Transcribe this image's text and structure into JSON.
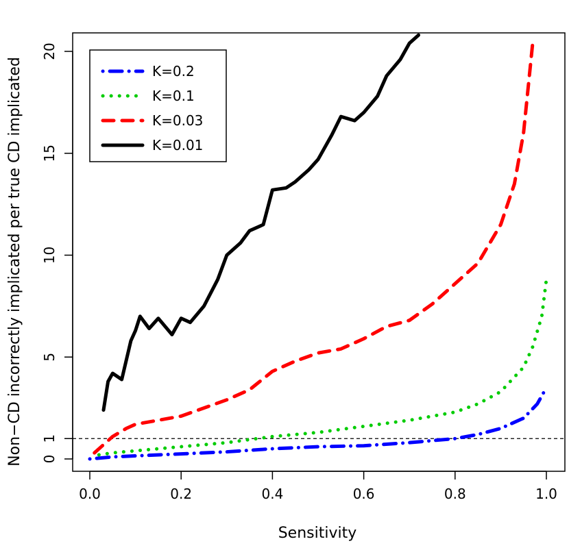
{
  "chart_data": {
    "type": "line",
    "title": "",
    "xlabel": "Sensitivity",
    "ylabel": "Non−CD incorrectly implicated per true CD implicated",
    "xlim": [
      0.0,
      1.0
    ],
    "ylim": [
      0,
      20
    ],
    "x_ticks": [
      "0.0",
      "0.2",
      "0.4",
      "0.6",
      "0.8",
      "1.0"
    ],
    "y_ticks": [
      "0",
      "1",
      "5",
      "10",
      "15",
      "20"
    ],
    "y_tick_values": [
      0,
      1,
      5,
      10,
      15,
      20
    ],
    "grid": false,
    "legend_position": "top-left",
    "reference_line": {
      "y": 1,
      "style": "dashed",
      "color": "#000000"
    },
    "series": [
      {
        "name": "K=0.2",
        "color": "#0000ff",
        "style": "dashdot",
        "x": [
          0.0,
          0.05,
          0.1,
          0.2,
          0.3,
          0.4,
          0.5,
          0.6,
          0.7,
          0.8,
          0.85,
          0.9,
          0.95,
          0.98,
          1.0
        ],
        "y": [
          0.0,
          0.1,
          0.15,
          0.25,
          0.35,
          0.5,
          0.6,
          0.65,
          0.8,
          1.0,
          1.2,
          1.5,
          2.0,
          2.7,
          3.5
        ]
      },
      {
        "name": "K=0.1",
        "color": "#00cc00",
        "style": "dotted",
        "x": [
          0.02,
          0.05,
          0.1,
          0.2,
          0.3,
          0.4,
          0.5,
          0.6,
          0.7,
          0.8,
          0.85,
          0.9,
          0.95,
          0.97,
          0.99,
          1.0
        ],
        "y": [
          0.2,
          0.3,
          0.4,
          0.6,
          0.8,
          1.1,
          1.3,
          1.6,
          1.9,
          2.3,
          2.7,
          3.3,
          4.5,
          5.5,
          7.0,
          8.8
        ]
      },
      {
        "name": "K=0.03",
        "color": "#ff0000",
        "style": "dashed",
        "x": [
          0.01,
          0.03,
          0.05,
          0.08,
          0.1,
          0.15,
          0.2,
          0.25,
          0.3,
          0.35,
          0.4,
          0.45,
          0.5,
          0.55,
          0.6,
          0.65,
          0.7,
          0.75,
          0.8,
          0.85,
          0.9,
          0.93,
          0.95,
          0.97
        ],
        "y": [
          0.3,
          0.7,
          1.1,
          1.5,
          1.7,
          1.9,
          2.1,
          2.5,
          2.9,
          3.4,
          4.3,
          4.8,
          5.2,
          5.4,
          5.9,
          6.5,
          6.8,
          7.6,
          8.6,
          9.6,
          11.5,
          13.5,
          16.0,
          20.4
        ]
      },
      {
        "name": "K=0.01",
        "color": "#000000",
        "style": "solid",
        "x": [
          0.03,
          0.04,
          0.05,
          0.07,
          0.09,
          0.1,
          0.11,
          0.13,
          0.15,
          0.18,
          0.2,
          0.22,
          0.25,
          0.28,
          0.3,
          0.33,
          0.35,
          0.38,
          0.4,
          0.43,
          0.45,
          0.48,
          0.5,
          0.53,
          0.55,
          0.58,
          0.6,
          0.63,
          0.65,
          0.68,
          0.7,
          0.72
        ],
        "y": [
          2.4,
          3.8,
          4.2,
          3.9,
          5.8,
          6.3,
          7.0,
          6.4,
          6.9,
          6.1,
          6.9,
          6.7,
          7.5,
          8.8,
          10.0,
          10.6,
          11.2,
          11.5,
          13.2,
          13.3,
          13.6,
          14.2,
          14.7,
          15.9,
          16.8,
          16.6,
          17.0,
          17.8,
          18.8,
          19.6,
          20.4,
          20.8
        ]
      }
    ]
  }
}
